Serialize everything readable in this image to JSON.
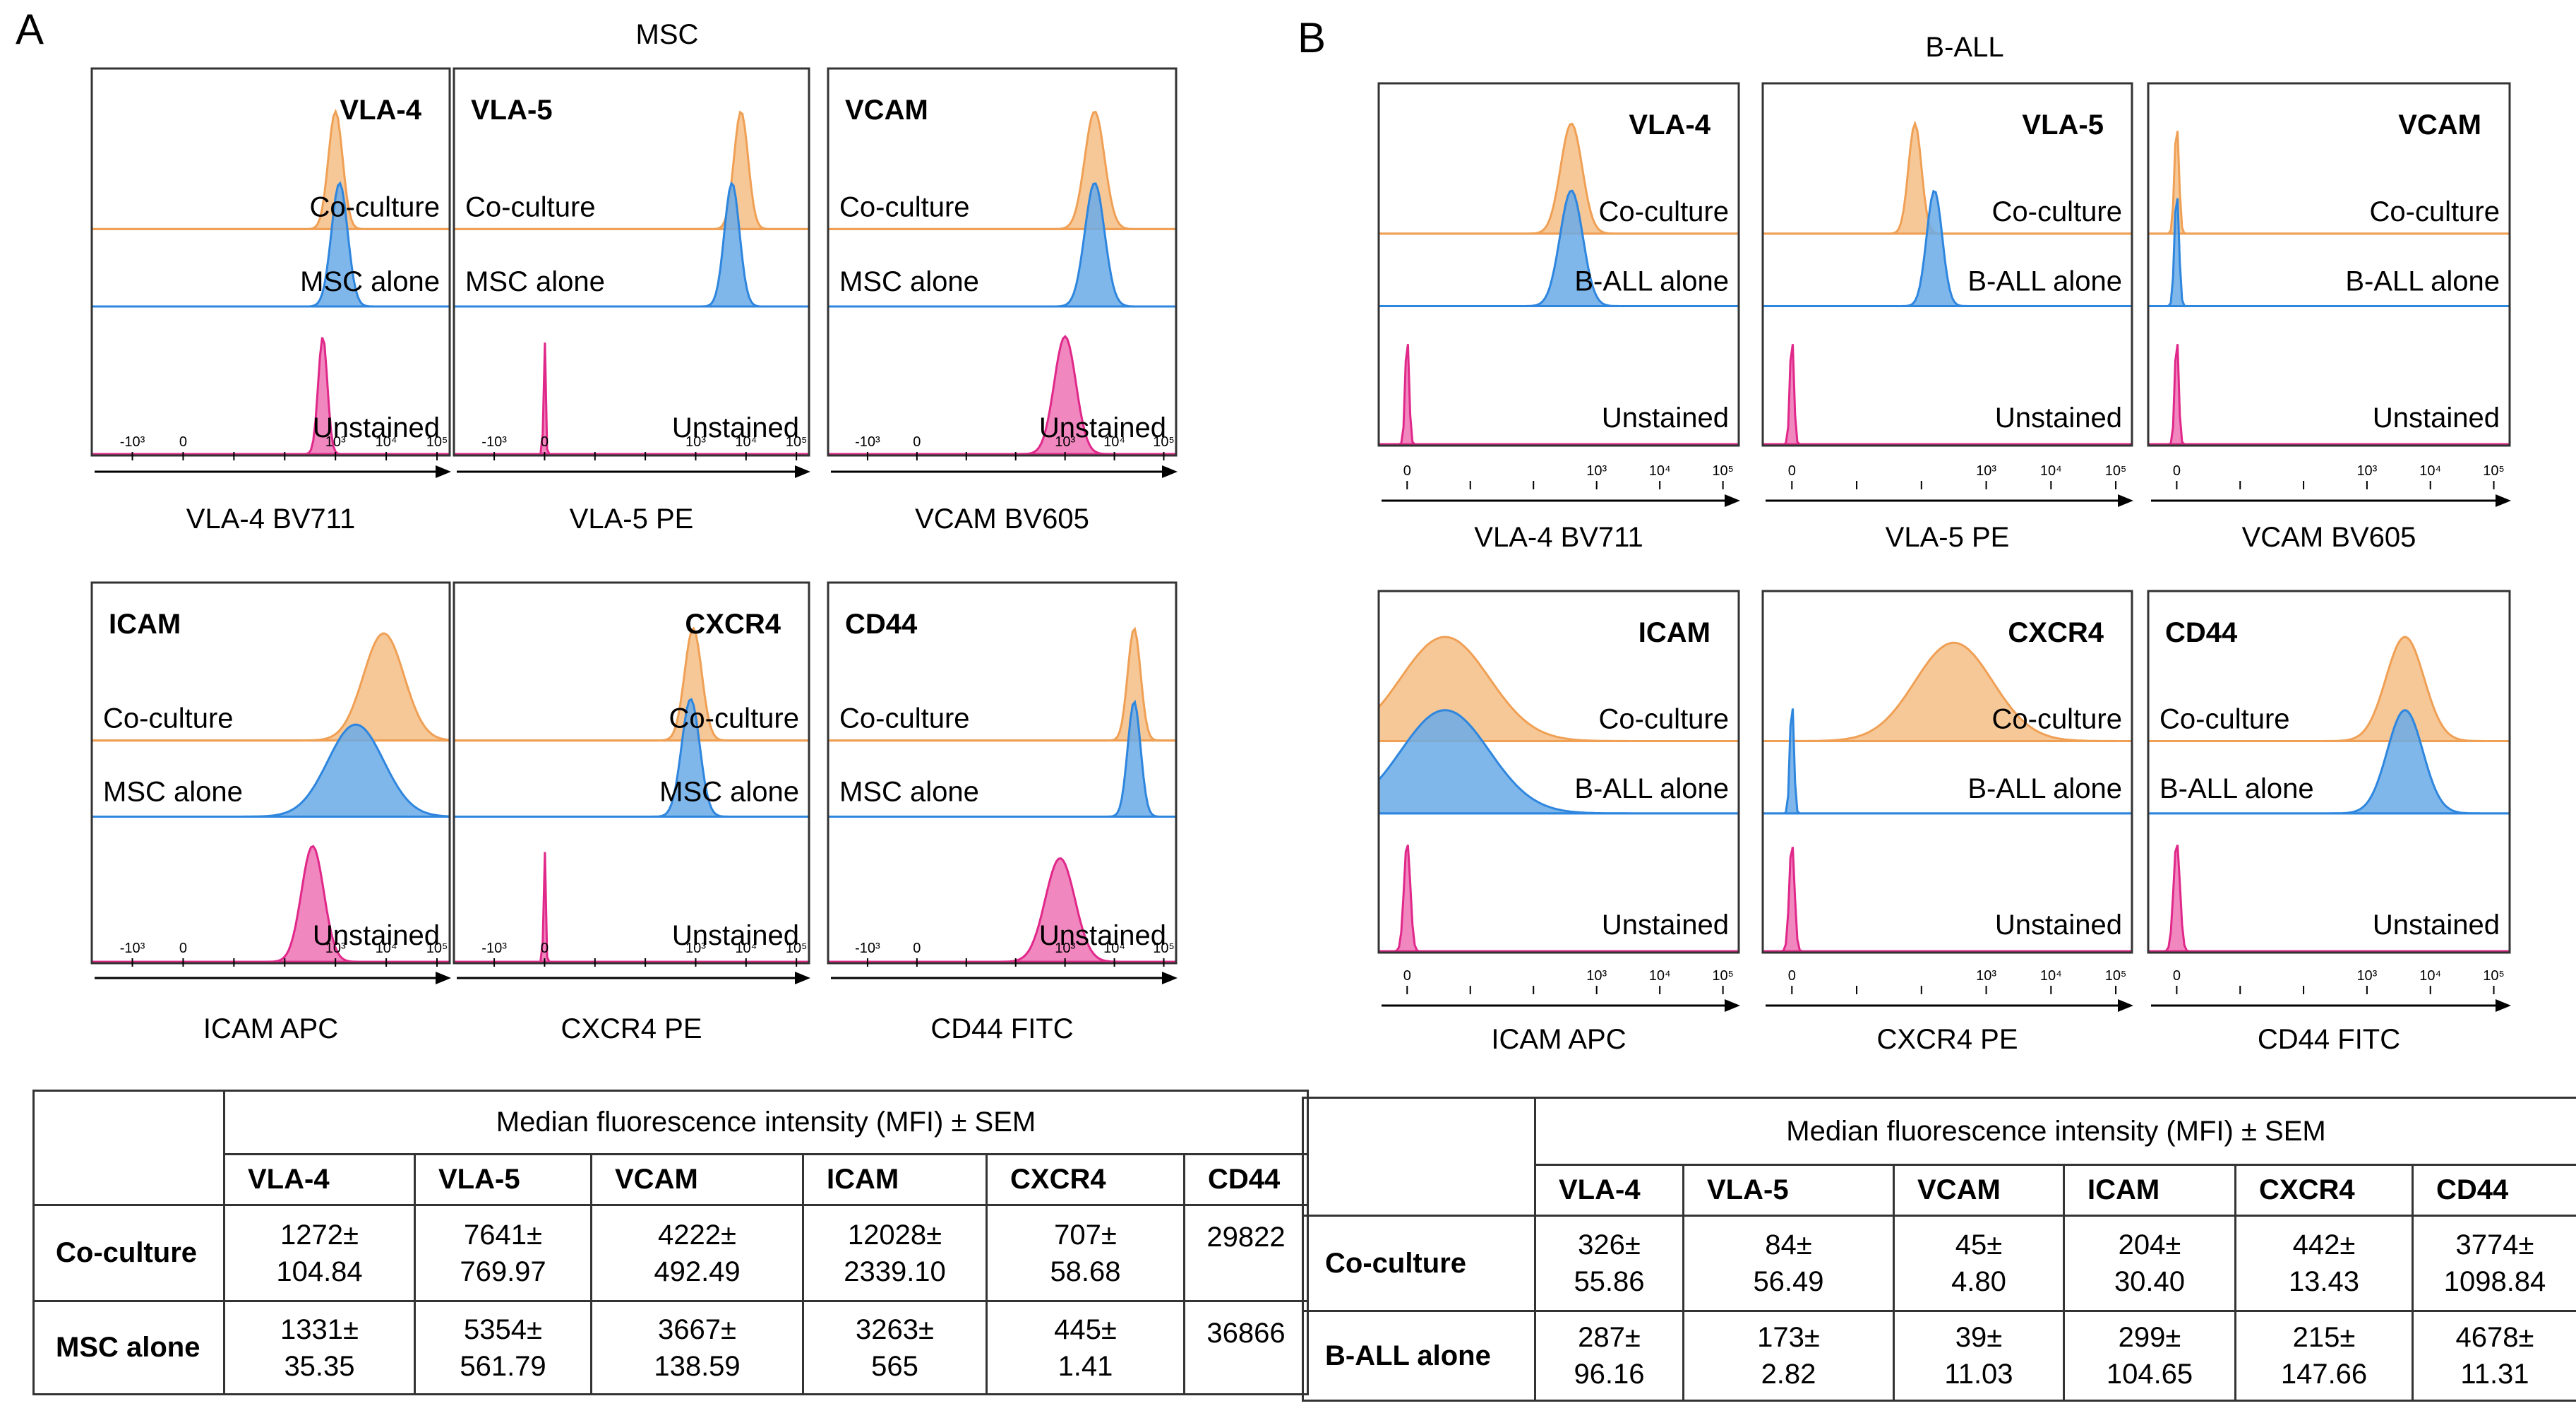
{
  "panels": [
    {
      "letter": "A",
      "title": "MSC",
      "plots": [
        {
          "marker": "VLA-4",
          "channel": "VLA-4 BV711",
          "marker_pos": "right",
          "labels": [
            "Co-culture",
            "MSC alone",
            "Unstained"
          ],
          "unstained": {
            "center": 2.75,
            "width": 0.09,
            "height": 0.95
          },
          "alone": {
            "center": 3.08,
            "width": 0.16,
            "height": 0.95
          },
          "coculture": {
            "center": 3.0,
            "width": 0.14,
            "height": 0.95
          }
        },
        {
          "marker": "VLA-5",
          "channel": "VLA-5 PE",
          "marker_pos": "left",
          "labels": [
            "Co-culture",
            "MSC alone",
            "Unstained"
          ],
          "unstained": {
            "center": 0.0,
            "width": 0.02,
            "height": 0.95
          },
          "alone": {
            "center": 3.72,
            "width": 0.15,
            "height": 0.95
          },
          "coculture": {
            "center": 3.9,
            "width": 0.14,
            "height": 0.95
          }
        },
        {
          "marker": "VCAM",
          "channel": "VCAM BV605",
          "marker_pos": "left",
          "labels": [
            "Co-culture",
            "MSC alone",
            "Unstained"
          ],
          "unstained": {
            "center": 3.0,
            "width": 0.22,
            "height": 0.95
          },
          "alone": {
            "center": 3.6,
            "width": 0.2,
            "height": 0.95
          },
          "coculture": {
            "center": 3.6,
            "width": 0.2,
            "height": 0.95
          }
        },
        {
          "marker": "ICAM",
          "channel": "ICAM APC",
          "marker_pos": "left",
          "labels": [
            "Co-culture",
            "MSC alone",
            "Unstained"
          ],
          "unstained": {
            "center": 2.55,
            "width": 0.22,
            "height": 0.95
          },
          "alone": {
            "center": 3.4,
            "width": 0.55,
            "height": 0.72
          },
          "coculture": {
            "center": 3.95,
            "width": 0.4,
            "height": 0.88
          }
        },
        {
          "marker": "CXCR4",
          "channel": "CXCR4 PE",
          "marker_pos": "right",
          "labels": [
            "Co-culture",
            "MSC alone",
            "Unstained"
          ],
          "unstained": {
            "center": 0.0,
            "width": 0.02,
            "height": 0.95
          },
          "alone": {
            "center": 2.9,
            "width": 0.18,
            "height": 0.92
          },
          "coculture": {
            "center": 2.95,
            "width": 0.17,
            "height": 0.92
          }
        },
        {
          "marker": "CD44",
          "channel": "CD44 FITC",
          "marker_pos": "left",
          "labels": [
            "Co-culture",
            "MSC alone",
            "Unstained"
          ],
          "unstained": {
            "center": 2.9,
            "width": 0.3,
            "height": 0.85
          },
          "alone": {
            "center": 4.4,
            "width": 0.13,
            "height": 0.9
          },
          "coculture": {
            "center": 4.4,
            "width": 0.13,
            "height": 0.92
          }
        }
      ],
      "table": {
        "header": "Median fluorescence intensity (MFI) ± SEM",
        "columns": [
          "VLA-4",
          "VLA-5",
          "VCAM",
          "ICAM",
          "CXCR4",
          "CD44"
        ],
        "rows": [
          {
            "label": "Co-culture",
            "cells": [
              [
                "1272±",
                "104.84"
              ],
              [
                "7641±",
                "769.97"
              ],
              [
                "4222±",
                "492.49"
              ],
              [
                "12028±",
                "2339.10"
              ],
              [
                "707±",
                "58.68"
              ],
              [
                "29822",
                ""
              ]
            ]
          },
          {
            "label": "MSC alone",
            "cells": [
              [
                "1331±",
                "35.35"
              ],
              [
                "5354±",
                "561.79"
              ],
              [
                "3667±",
                "138.59"
              ],
              [
                "3263±",
                "565"
              ],
              [
                "445±",
                "1.41"
              ],
              [
                "36866",
                ""
              ]
            ]
          }
        ]
      }
    },
    {
      "letter": "B",
      "title": "B-ALL",
      "plots": [
        {
          "marker": "VLA-4",
          "channel": "VLA-4 BV711",
          "marker_pos": "right",
          "labels": [
            "Co-culture",
            "B-ALL alone",
            "Unstained"
          ],
          "unstained": {
            "center": 0.0,
            "width": 0.03,
            "height": 0.95
          },
          "alone": {
            "center": 2.6,
            "width": 0.18,
            "height": 0.95
          },
          "coculture": {
            "center": 2.6,
            "width": 0.17,
            "height": 0.95
          }
        },
        {
          "marker": "VLA-5",
          "channel": "VLA-5 PE",
          "marker_pos": "right",
          "labels": [
            "Co-culture",
            "B-ALL alone",
            "Unstained"
          ],
          "unstained": {
            "center": 0.0,
            "width": 0.03,
            "height": 0.95
          },
          "alone": {
            "center": 2.2,
            "width": 0.12,
            "height": 0.95
          },
          "coculture": {
            "center": 1.9,
            "width": 0.1,
            "height": 0.95
          }
        },
        {
          "marker": "VCAM",
          "channel": "VCAM BV605",
          "marker_pos": "right",
          "labels": [
            "Co-culture",
            "B-ALL alone",
            "Unstained"
          ],
          "unstained": {
            "center": 0.0,
            "width": 0.03,
            "height": 0.95
          },
          "alone": {
            "center": 0.0,
            "width": 0.035,
            "height": 0.95
          },
          "coculture": {
            "center": 0.0,
            "width": 0.035,
            "height": 0.95
          }
        },
        {
          "marker": "ICAM",
          "channel": "ICAM APC",
          "marker_pos": "right",
          "labels": [
            "Co-culture",
            "B-ALL alone",
            "Unstained"
          ],
          "unstained": {
            "center": 0.0,
            "width": 0.05,
            "height": 0.95
          },
          "alone": {
            "center": 0.6,
            "width": 0.7,
            "height": 0.85
          },
          "coculture": {
            "center": 0.6,
            "width": 0.7,
            "height": 0.9
          }
        },
        {
          "marker": "CXCR4",
          "channel": "CXCR4 PE",
          "marker_pos": "right",
          "labels": [
            "Co-culture",
            "B-ALL alone",
            "Unstained"
          ],
          "unstained": {
            "center": 0.0,
            "width": 0.04,
            "height": 0.95
          },
          "alone": {
            "center": 0.0,
            "width": 0.03,
            "height": 0.95
          },
          "coculture": {
            "center": 2.5,
            "width": 0.6,
            "height": 0.85
          }
        },
        {
          "marker": "CD44",
          "channel": "CD44 FITC",
          "marker_pos": "left",
          "labels": [
            "Co-culture",
            "B-ALL alone",
            "Unstained"
          ],
          "unstained": {
            "center": 0.0,
            "width": 0.05,
            "height": 0.95
          },
          "alone": {
            "center": 3.6,
            "width": 0.28,
            "height": 0.85
          },
          "coculture": {
            "center": 3.6,
            "width": 0.3,
            "height": 0.9
          }
        }
      ],
      "table": {
        "header": "Median fluorescence intensity (MFI) ± SEM",
        "columns": [
          "VLA-4",
          "VLA-5",
          "VCAM",
          "ICAM",
          "CXCR4",
          "CD44"
        ],
        "rows": [
          {
            "label": "Co-culture",
            "cells": [
              [
                "326±",
                "55.86"
              ],
              [
                "84±",
                "56.49"
              ],
              [
                "45±",
                "4.80"
              ],
              [
                "204±",
                "30.40"
              ],
              [
                "442±",
                "13.43"
              ],
              [
                "3774±",
                "1098.84"
              ]
            ]
          },
          {
            "label": "B-ALL alone",
            "cells": [
              [
                "287±",
                "96.16"
              ],
              [
                "173±",
                "2.82"
              ],
              [
                "39±",
                "11.03"
              ],
              [
                "299±",
                "104.65"
              ],
              [
                "215±",
                "147.66"
              ],
              [
                "4678±",
                "11.31"
              ]
            ]
          }
        ]
      }
    }
  ],
  "axis": {
    "a_ticks": [
      "-10³",
      "0",
      "10³",
      "10⁴",
      "10⁵"
    ],
    "b_ticks": [
      "0",
      "10³",
      "10⁴",
      "10⁵"
    ]
  },
  "colors": {
    "coculture_fill": "#f6c898",
    "coculture_line": "#f0a055",
    "alone_fill": "#6aaae8",
    "alone_line": "#2e86de",
    "unstained_fill": "#f07ab8",
    "unstained_line": "#e0288a",
    "overlap_fill": "#7c8ea8"
  }
}
